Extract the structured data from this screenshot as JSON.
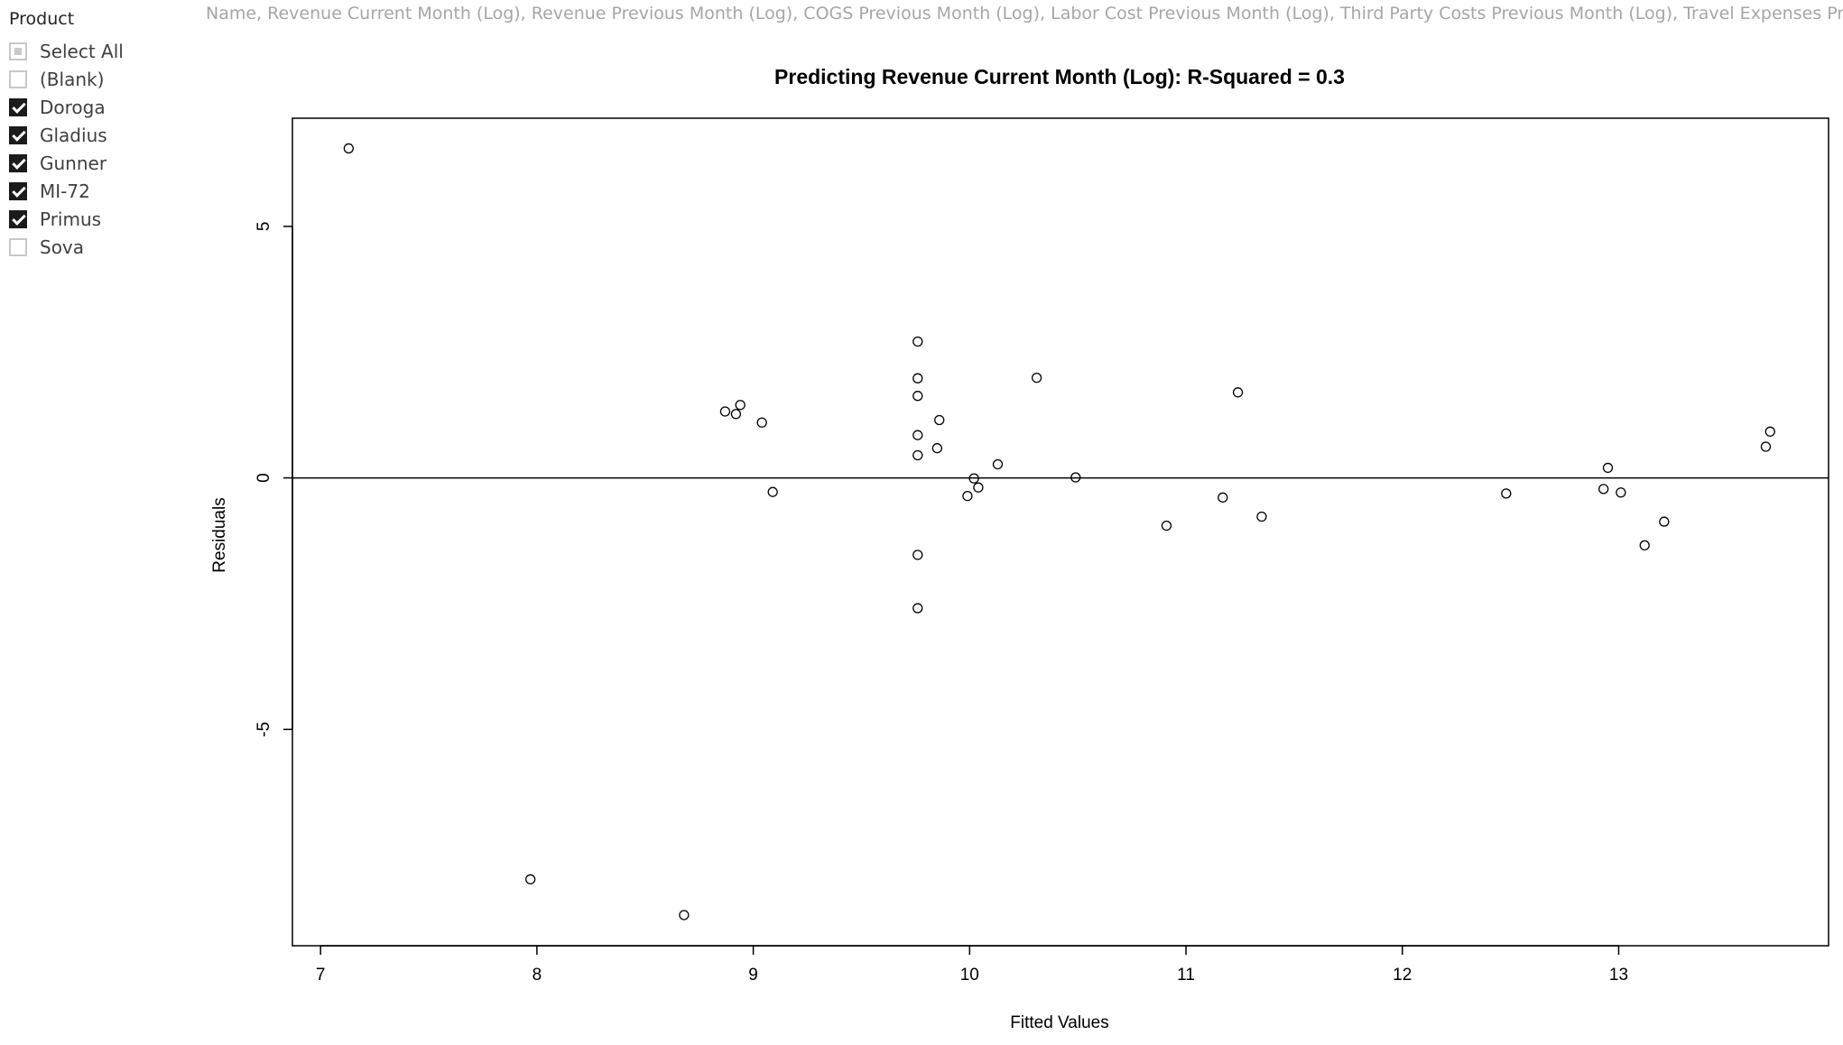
{
  "slicer": {
    "title": "Product",
    "items": [
      {
        "label": "Select All",
        "state": "partial"
      },
      {
        "label": "(Blank)",
        "state": "unchecked"
      },
      {
        "label": "Doroga",
        "state": "checked"
      },
      {
        "label": "Gladius",
        "state": "checked"
      },
      {
        "label": "Gunner",
        "state": "checked"
      },
      {
        "label": "MI-72",
        "state": "checked"
      },
      {
        "label": "Primus",
        "state": "checked"
      },
      {
        "label": "Sova",
        "state": "unchecked"
      }
    ]
  },
  "fields_text": "Name, Revenue Current Month (Log), Revenue Previous Month (Log), COGS Previous Month (Log), Labor Cost Previous Month (Log), Third Party Costs Previous Month (Log), Travel Expenses Previous Month (Log",
  "chart_data": {
    "type": "scatter",
    "title": "Predicting Revenue Current Month (Log): R-Squared = 0.3",
    "xlabel": "Fitted Values",
    "ylabel": "Residuals",
    "xlim": [
      6.87,
      13.97
    ],
    "ylim": [
      -9.3,
      7.15
    ],
    "xticks": [
      7,
      8,
      9,
      10,
      11,
      12,
      13
    ],
    "yticks": [
      5,
      0,
      -5
    ],
    "reference_line_y": 0,
    "grid": false,
    "points": [
      {
        "x": 7.13,
        "y": 6.55
      },
      {
        "x": 7.97,
        "y": -7.98
      },
      {
        "x": 8.68,
        "y": -8.69
      },
      {
        "x": 8.87,
        "y": 1.32
      },
      {
        "x": 8.92,
        "y": 1.27
      },
      {
        "x": 8.94,
        "y": 1.45
      },
      {
        "x": 9.04,
        "y": 1.1
      },
      {
        "x": 9.09,
        "y": -0.28
      },
      {
        "x": 9.76,
        "y": 2.71
      },
      {
        "x": 9.76,
        "y": 1.98
      },
      {
        "x": 9.76,
        "y": 1.63
      },
      {
        "x": 9.76,
        "y": 0.85
      },
      {
        "x": 9.76,
        "y": 0.45
      },
      {
        "x": 9.76,
        "y": -1.53
      },
      {
        "x": 9.76,
        "y": -2.59
      },
      {
        "x": 9.85,
        "y": 0.59
      },
      {
        "x": 9.86,
        "y": 1.15
      },
      {
        "x": 9.99,
        "y": -0.36
      },
      {
        "x": 10.02,
        "y": -0.01
      },
      {
        "x": 10.04,
        "y": -0.19
      },
      {
        "x": 10.13,
        "y": 0.27
      },
      {
        "x": 10.31,
        "y": 1.99
      },
      {
        "x": 10.49,
        "y": 0.01
      },
      {
        "x": 10.91,
        "y": -0.95
      },
      {
        "x": 11.17,
        "y": -0.39
      },
      {
        "x": 11.24,
        "y": 1.7
      },
      {
        "x": 11.35,
        "y": -0.77
      },
      {
        "x": 12.48,
        "y": -0.31
      },
      {
        "x": 12.93,
        "y": -0.22
      },
      {
        "x": 12.95,
        "y": 0.2
      },
      {
        "x": 13.01,
        "y": -0.29
      },
      {
        "x": 13.12,
        "y": -1.34
      },
      {
        "x": 13.21,
        "y": -0.87
      },
      {
        "x": 13.68,
        "y": 0.62
      },
      {
        "x": 13.7,
        "y": 0.92
      }
    ]
  }
}
